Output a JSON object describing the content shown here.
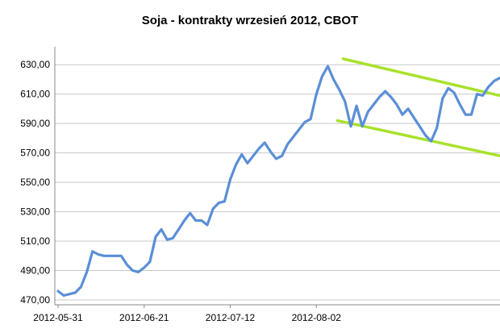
{
  "chart_data": {
    "type": "line",
    "title": "Soja - kontrakty wrzesień 2012, CBOT",
    "xlabel": "",
    "ylabel": "",
    "ylim": [
      470,
      640
    ],
    "grid": "horizontal",
    "y_ticks": [
      "470,00",
      "490,00",
      "510,00",
      "530,00",
      "550,00",
      "570,00",
      "590,00",
      "610,00",
      "630,00"
    ],
    "x_ticks": [
      "2012-05-31",
      "2012-06-21",
      "2012-07-12",
      "2012-08-02"
    ],
    "colors": {
      "price_line": "#5B8FD6",
      "trend_lines": "#A8E22B",
      "grid": "#C8C8C8",
      "axis": "#888888"
    },
    "series": [
      {
        "values": [
          476,
          473,
          474,
          475,
          479,
          489,
          503,
          501,
          500,
          500,
          500,
          500,
          494,
          490,
          489,
          492,
          496,
          513,
          518,
          511,
          512,
          518,
          524,
          529,
          524,
          524,
          521,
          532,
          536,
          537,
          552,
          562,
          569,
          563,
          568,
          573,
          577,
          571,
          566,
          568,
          576,
          581,
          586,
          591,
          593,
          610,
          622,
          629,
          620,
          613,
          605,
          588,
          602,
          588,
          598,
          603,
          608,
          612,
          608,
          603,
          596,
          600,
          594,
          588,
          582,
          578,
          587,
          607,
          614,
          611,
          603,
          596,
          596,
          610,
          609,
          615,
          619,
          621
        ]
      }
    ],
    "trend_lines": [
      {
        "x": [
          0.645,
          1.0
        ],
        "y": [
          634,
          609
        ]
      },
      {
        "x": [
          0.632,
          1.0
        ],
        "y": [
          592,
          568
        ]
      }
    ]
  }
}
